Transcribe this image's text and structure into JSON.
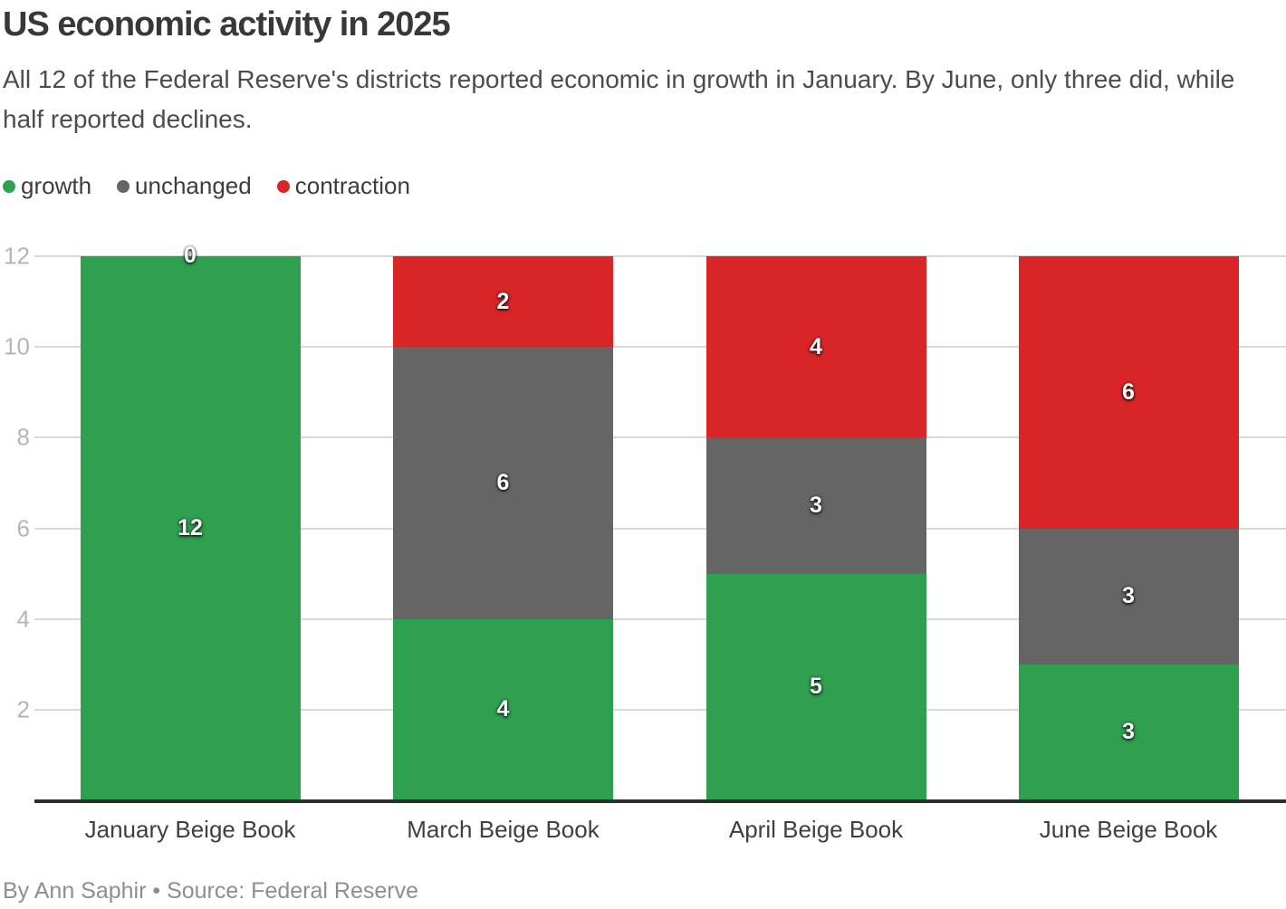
{
  "header": {
    "title": "US economic activity in 2025",
    "subtitle": "All 12 of the Federal Reserve's districts reported economic in growth in January. By June, only three did, while half reported declines."
  },
  "legend": [
    {
      "label": "growth",
      "color": "#2ea04f"
    },
    {
      "label": "unchanged",
      "color": "#656565"
    },
    {
      "label": "contraction",
      "color": "#d92528"
    }
  ],
  "chart_data": {
    "type": "bar",
    "stacked": true,
    "title": "US economic activity in 2025",
    "categories": [
      "January Beige Book",
      "March Beige Book",
      "April Beige Book",
      "June Beige Book"
    ],
    "series": [
      {
        "name": "growth",
        "color": "#2ea04f",
        "values": [
          12,
          4,
          5,
          3
        ]
      },
      {
        "name": "unchanged",
        "color": "#656565",
        "values": [
          0,
          6,
          3,
          3
        ]
      },
      {
        "name": "contraction",
        "color": "#d92528",
        "values": [
          0,
          2,
          4,
          6
        ]
      }
    ],
    "ylim": [
      0,
      12
    ],
    "yticks": [
      2,
      4,
      6,
      8,
      10,
      12
    ],
    "grid": true,
    "legend_position": "top",
    "bar_value_labels": true,
    "colors": {
      "gridline": "#d9d9d9",
      "axis_line": "#2e2e2e",
      "tick_label": "#b5b5b5",
      "category_label": "#3f3f3f"
    }
  },
  "footer": {
    "byline": "By Ann Saphir • Source: Federal Reserve"
  }
}
